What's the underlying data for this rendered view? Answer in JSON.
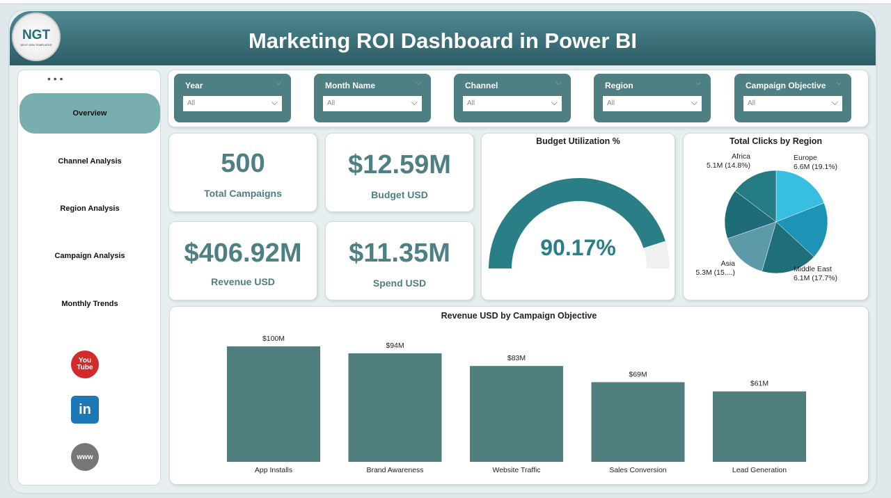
{
  "header": {
    "title": "Marketing ROI Dashboard in Power BI",
    "logo_text": "NGT",
    "logo_sub": "NEXT GEN TEMPLATES"
  },
  "sidebar": {
    "more": "• • •",
    "items": [
      {
        "label": "Overview",
        "active": true
      },
      {
        "label": "Channel Analysis"
      },
      {
        "label": "Region Analysis"
      },
      {
        "label": "Campaign Analysis"
      },
      {
        "label": "Monthly Trends"
      }
    ],
    "social": [
      {
        "icon": "youtube-icon",
        "text": "You Tube",
        "color": "#d32a2a"
      },
      {
        "icon": "linkedin-icon",
        "text": "in",
        "color": "#1b77b5"
      },
      {
        "icon": "globe-icon",
        "text": "www",
        "color": "#777777"
      }
    ]
  },
  "filters": [
    {
      "label": "Year",
      "value": "All"
    },
    {
      "label": "Month Name",
      "value": "All"
    },
    {
      "label": "Channel",
      "value": "All"
    },
    {
      "label": "Region",
      "value": "All"
    },
    {
      "label": "Campaign Objective",
      "value": "All"
    }
  ],
  "kpis": [
    {
      "value": "500",
      "label": "Total Campaigns"
    },
    {
      "value": "$12.59M",
      "label": "Budget USD"
    },
    {
      "value": "$406.92M",
      "label": "Revenue USD"
    },
    {
      "value": "$11.35M",
      "label": "Spend USD"
    }
  ],
  "gauge": {
    "title": "Budget Utilization %",
    "value_label": "90.17%",
    "value": 90.17,
    "max": 100,
    "fill": "#2a7f86",
    "track": "#f0f0f0"
  },
  "chart_data": [
    {
      "type": "pie",
      "title": "Total Clicks by Region",
      "slices": [
        {
          "name": "Europe",
          "value": 6.6,
          "label": "6.6M (19.1%)",
          "color": "#38bde3"
        },
        {
          "name": "",
          "value": 6.2,
          "label": "",
          "color": "#1d93b5"
        },
        {
          "name": "Middle East",
          "value": 6.1,
          "label": "6.1M (17.7%)",
          "color": "#1e6f79"
        },
        {
          "name": "Asia",
          "value": 5.3,
          "label": "5.3M (15....)",
          "color": "#5c9aa7"
        },
        {
          "name": "",
          "value": 5.4,
          "label": "",
          "color": "#1e6c78"
        },
        {
          "name": "Africa",
          "value": 5.1,
          "label": "5.1M (14.8%)",
          "color": "#247b83"
        }
      ]
    },
    {
      "type": "bar",
      "title": "Revenue USD by Campaign Objective",
      "categories": [
        "App Installs",
        "Brand Awareness",
        "Website Traffic",
        "Sales Conversion",
        "Lead Generation"
      ],
      "values": [
        100,
        94,
        83,
        69,
        61
      ],
      "labels": [
        "$100M",
        "$94M",
        "$83M",
        "$69M",
        "$61M"
      ],
      "ylim": [
        0,
        100
      ],
      "color": "#517f80"
    }
  ]
}
